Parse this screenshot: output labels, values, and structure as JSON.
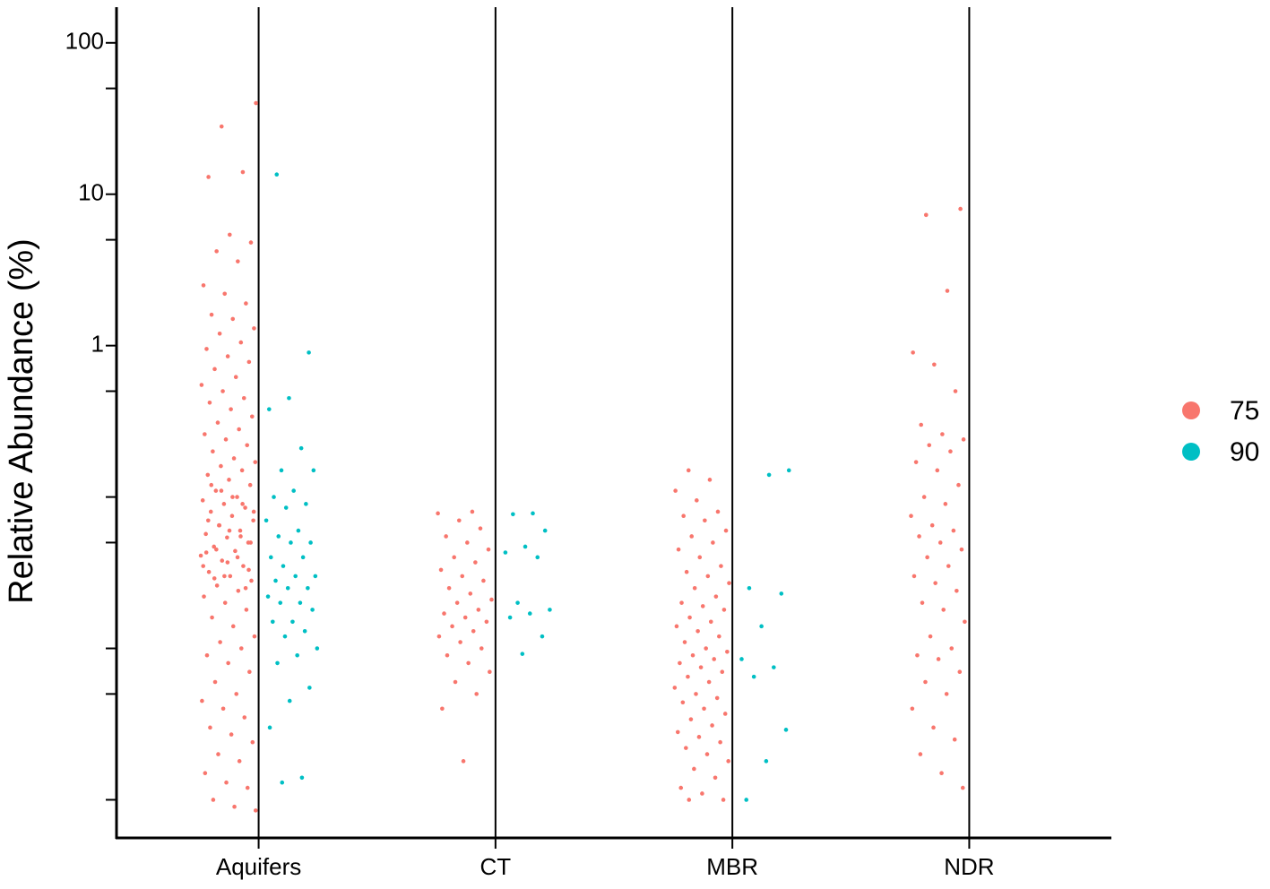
{
  "chart_data": {
    "type": "strip",
    "y_label": "Relative Abundance (%)",
    "y_scale": "log",
    "categories": [
      "Aquifers",
      "CT",
      "MBR",
      "NDR"
    ],
    "ylim": [
      0.00056,
      172
    ],
    "yticks": [
      1,
      10,
      100
    ],
    "ytick_marks": [
      0.001,
      0.005,
      0.01,
      0.05,
      0.1,
      0.5,
      5,
      50
    ],
    "category_lines": true,
    "legend_position": "right",
    "series": [
      {
        "name": "75",
        "color": "#F8766D",
        "values": [
          [
            40,
            28,
            14,
            13,
            5.4,
            4.8,
            4.2,
            3.6,
            2.5,
            2.2,
            1.9,
            1.6,
            1.5,
            1.3,
            1.2,
            1.05,
            0.95,
            0.85,
            0.78,
            0.7,
            0.62,
            0.55,
            0.5,
            0.45,
            0.42,
            0.38,
            0.34,
            0.31,
            0.28,
            0.26,
            0.24,
            0.22,
            0.2,
            0.18,
            0.17,
            0.16,
            0.15,
            0.14,
            0.13,
            0.12,
            0.11,
            0.1,
            0.095,
            0.09,
            0.085,
            0.08,
            0.075,
            0.07,
            0.065,
            0.06,
            0.057,
            0.054,
            0.05,
            0.047,
            0.044,
            0.041,
            0.038,
            0.035,
            0.032,
            0.03,
            0.028,
            0.026,
            0.024,
            0.022,
            0.02,
            0.018,
            0.016,
            0.014,
            0.012,
            0.011,
            0.01,
            0.009,
            0.008,
            0.007,
            0.006,
            0.005,
            0.0045,
            0.004,
            0.0035,
            0.003,
            0.0027,
            0.0024,
            0.002,
            0.0018,
            0.0015,
            0.0013,
            0.0012,
            0.001,
            0.0009,
            0.00085,
            0.11,
            0.09,
            0.07,
            0.06,
            0.05,
            0.045,
            0.04,
            0.035,
            0.03,
            0.025,
            0.12,
            0.1,
            0.08,
            0.065,
            0.055,
            0.043,
            0.037,
            0.033,
            0.029
          ],
          [
            0.08,
            0.078,
            0.07,
            0.062,
            0.055,
            0.05,
            0.045,
            0.04,
            0.037,
            0.033,
            0.03,
            0.028,
            0.025,
            0.023,
            0.021,
            0.02,
            0.018,
            0.017,
            0.016,
            0.015,
            0.014,
            0.013,
            0.012,
            0.011,
            0.01,
            0.009,
            0.008,
            0.007,
            0.006,
            0.005,
            0.004,
            0.0018
          ],
          [
            0.15,
            0.13,
            0.11,
            0.095,
            0.08,
            0.075,
            0.07,
            0.06,
            0.055,
            0.05,
            0.045,
            0.04,
            0.035,
            0.032,
            0.03,
            0.027,
            0.025,
            0.022,
            0.02,
            0.019,
            0.018,
            0.016,
            0.015,
            0.014,
            0.013,
            0.012,
            0.011,
            0.01,
            0.0095,
            0.009,
            0.0085,
            0.008,
            0.0075,
            0.007,
            0.0065,
            0.006,
            0.0055,
            0.005,
            0.0047,
            0.0044,
            0.004,
            0.0037,
            0.0034,
            0.0031,
            0.0028,
            0.0026,
            0.0024,
            0.0022,
            0.002,
            0.0018,
            0.0016,
            0.0014,
            0.0012,
            0.0011,
            0.001,
            0.001
          ],
          [
            8,
            7.3,
            2.3,
            0.9,
            0.75,
            0.5,
            0.3,
            0.26,
            0.24,
            0.22,
            0.2,
            0.17,
            0.15,
            0.12,
            0.1,
            0.09,
            0.075,
            0.065,
            0.06,
            0.055,
            0.05,
            0.045,
            0.04,
            0.035,
            0.03,
            0.027,
            0.024,
            0.02,
            0.018,
            0.015,
            0.012,
            0.01,
            0.009,
            0.0085,
            0.007,
            0.006,
            0.005,
            0.004,
            0.003,
            0.0025,
            0.002,
            0.0015,
            0.0012
          ]
        ]
      },
      {
        "name": "90",
        "color": "#00BFC4",
        "values": [
          [
            13.5,
            0.9,
            0.45,
            0.38,
            0.21,
            0.15,
            0.15,
            0.11,
            0.1,
            0.09,
            0.085,
            0.07,
            0.06,
            0.055,
            0.05,
            0.05,
            0.04,
            0.04,
            0.035,
            0.03,
            0.03,
            0.028,
            0.025,
            0.025,
            0.022,
            0.02,
            0.02,
            0.018,
            0.015,
            0.015,
            0.013,
            0.012,
            0.01,
            0.009,
            0.008,
            0.0055,
            0.0045,
            0.003,
            0.0014,
            0.0013
          ],
          [
            0.078,
            0.077,
            0.06,
            0.047,
            0.043,
            0.04,
            0.02,
            0.018,
            0.017,
            0.016,
            0.012,
            0.0092
          ],
          [
            0.15,
            0.14,
            0.025,
            0.023,
            0.014,
            0.0085,
            0.0075,
            0.0065,
            0.0029,
            0.0018,
            0.001
          ],
          []
        ]
      }
    ]
  }
}
